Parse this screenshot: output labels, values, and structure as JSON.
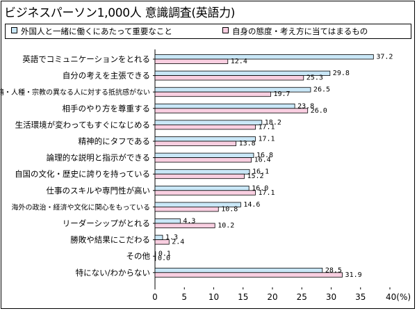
{
  "title": "ビジネスパーソン1,000人 意識調査(英語力)",
  "legend": {
    "items": [
      {
        "label": "外国人と一緒に働くにあたって重要なこと",
        "color": "#c9e7f7"
      },
      {
        "label": "自身の態度・考え方に当てはまるもの",
        "color": "#f9cfe1"
      }
    ]
  },
  "colors": {
    "series_a": "#c9e7f7",
    "series_b": "#f9cfe1",
    "stroke": "#000000"
  },
  "chart_data": {
    "type": "bar",
    "orientation": "horizontal",
    "categories": [
      "英語でコミュニケーションをとれる",
      "自分の考えを主張できる",
      "国籍・人種・宗教の異なる人に対する抵抗感がない",
      "相手のやり方を尊重する",
      "生活環境が変わってもすぐになじめる",
      "精神的にタフである",
      "論理的な説明と指示ができる",
      "自国の文化・歴史に誇りを持っている",
      "仕事のスキルや専門性が高い",
      "海外の政治・経済や文化に関心をもっている",
      "リーダーシップがとれる",
      "勝敗や結果にこだわる",
      "その他",
      "特にない/わからない"
    ],
    "series": [
      {
        "name": "外国人と一緒に働くにあたって重要なこと",
        "values": [
          37.2,
          29.8,
          26.5,
          23.8,
          18.2,
          17.1,
          16.8,
          16.1,
          16.0,
          14.6,
          4.3,
          1.3,
          0.1,
          28.5
        ]
      },
      {
        "name": "自身の態度・考え方に当てはまるもの",
        "values": [
          12.4,
          25.3,
          19.7,
          26.0,
          17.1,
          13.8,
          16.4,
          15.2,
          17.1,
          10.8,
          10.2,
          2.4,
          0.0,
          31.9
        ]
      }
    ],
    "value_labels": [
      [
        "37.2",
        "29.8",
        "26.5",
        "23.8",
        "18.2",
        "17.1",
        "16.8",
        "16.1",
        "16.0",
        "14.6",
        "4.3",
        "1.3",
        "0.1",
        "28.5"
      ],
      [
        "12.4",
        "25.3",
        "19.7",
        "26.0",
        "17.1",
        "13.8",
        "16.4",
        "15.2",
        "17.1",
        "10.8",
        "10.2",
        "2.4",
        "0.0",
        "31.9"
      ]
    ],
    "x_ticks": [
      "0",
      "5",
      "10",
      "15",
      "20",
      "25",
      "30",
      "35",
      "40(%)"
    ],
    "xlim": [
      0,
      40
    ]
  }
}
